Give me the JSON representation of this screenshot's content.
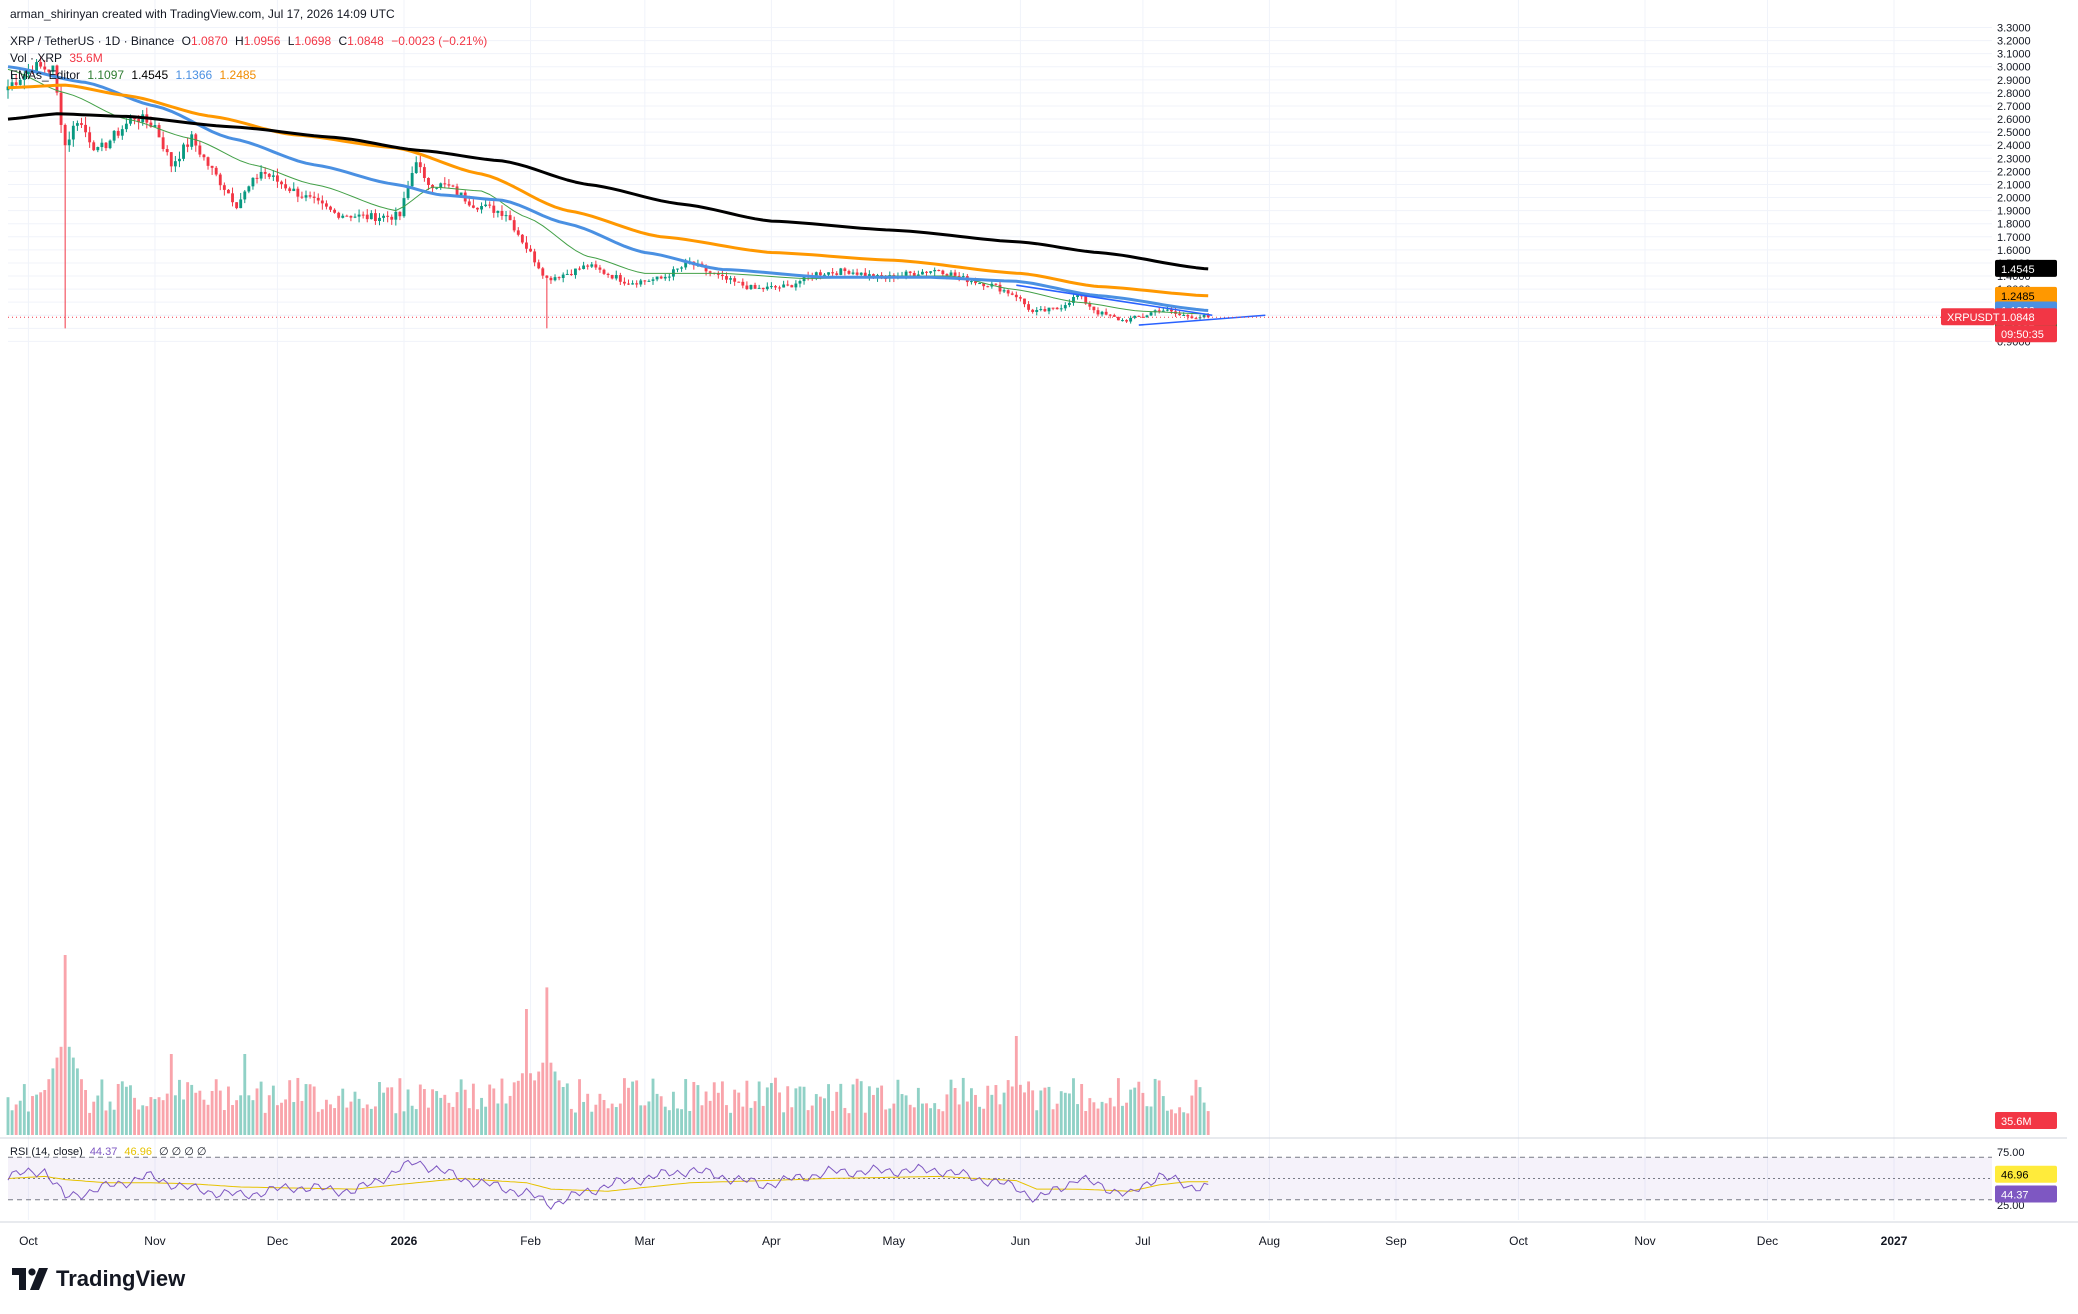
{
  "header": {
    "attribution": "arman_shirinyan created with TradingView.com, Jul 17, 2026 14:09 UTC",
    "symbol": "XRP / TetherUS · 1D · Binance",
    "o_label": "O",
    "o": "1.0870",
    "h_label": "H",
    "h": "1.0956",
    "l_label": "L",
    "l": "1.0698",
    "c_label": "C",
    "c": "1.0848",
    "change": "−0.0023 (−0.21%)",
    "vol_label": "Vol · XRP",
    "vol": "35.6M",
    "ema_label": "EMAs_Editor",
    "ema_values": [
      "1.1097",
      "1.4545",
      "1.1366",
      "1.2485"
    ]
  },
  "rsi_header": {
    "label": "RSI (14, close)",
    "value": "44.37",
    "ma": "46.96",
    "placeholders": "∅ ∅ ∅ ∅"
  },
  "price_axis_ticks": [
    "3.3000",
    "3.2000",
    "3.1000",
    "3.0000",
    "2.9000",
    "2.8000",
    "2.7000",
    "2.6000",
    "2.5000",
    "2.4000",
    "2.3000",
    "2.2000",
    "2.1000",
    "2.0000",
    "1.9000",
    "1.8000",
    "1.7000",
    "1.6000",
    "1.5000",
    "1.4000",
    "1.3000",
    "1.2000",
    "1.1000",
    "1.0000",
    "0.9000"
  ],
  "rsi_axis_ticks": [
    "75.00",
    "25.00"
  ],
  "time_axis": [
    "Oct",
    "Nov",
    "Dec",
    "2026",
    "Feb",
    "Mar",
    "Apr",
    "May",
    "Jun",
    "Jul",
    "Aug",
    "Sep",
    "Oct",
    "Nov",
    "Dec",
    "2027"
  ],
  "badges": {
    "ema200": "1.4545",
    "ema100": "1.2485",
    "ema50": "1.1366",
    "ema20": "1.1097",
    "symbol": "XRPUSDT",
    "price": "1.0848",
    "countdown": "09:50:35",
    "volume": "35.6M",
    "rsi_ma": "46.96",
    "rsi": "44.37"
  },
  "colors": {
    "up": "#089981",
    "down": "#f23645",
    "ema20": "#43a047",
    "ema50": "#4a90e2",
    "ema100": "#ff9800",
    "ema200": "#000000",
    "rsi": "#7e57c2",
    "rsi_ma": "#e6c200",
    "trendline": "#2962ff"
  },
  "logo_text": "TradingView",
  "chart_data": {
    "type": "candlestick",
    "title": "XRP / TetherUS · 1D · Binance",
    "x_range": [
      "2025-09-26",
      "2027-01-25"
    ],
    "price_range": [
      0.8,
      3.35
    ],
    "grid": true,
    "last_price": 1.0848,
    "price_path": [
      {
        "date": "2025-09-26",
        "close": 2.85
      },
      {
        "date": "2025-10-02",
        "close": 3.0
      },
      {
        "date": "2025-10-07",
        "close": 2.98
      },
      {
        "date": "2025-10-10",
        "close": 2.4
      },
      {
        "date": "2025-10-13",
        "close": 2.6
      },
      {
        "date": "2025-10-18",
        "close": 2.35
      },
      {
        "date": "2025-10-27",
        "close": 2.62
      },
      {
        "date": "2025-11-01",
        "close": 2.55
      },
      {
        "date": "2025-11-05",
        "close": 2.25
      },
      {
        "date": "2025-11-10",
        "close": 2.45
      },
      {
        "date": "2025-11-14",
        "close": 2.25
      },
      {
        "date": "2025-11-21",
        "close": 1.95
      },
      {
        "date": "2025-11-27",
        "close": 2.2
      },
      {
        "date": "2025-12-05",
        "close": 2.05
      },
      {
        "date": "2025-12-15",
        "close": 1.88
      },
      {
        "date": "2025-12-23",
        "close": 1.85
      },
      {
        "date": "2025-12-31",
        "close": 1.86
      },
      {
        "date": "2026-01-04",
        "close": 2.3
      },
      {
        "date": "2026-01-06",
        "close": 2.12
      },
      {
        "date": "2026-01-12",
        "close": 2.08
      },
      {
        "date": "2026-01-18",
        "close": 1.95
      },
      {
        "date": "2026-01-26",
        "close": 1.88
      },
      {
        "date": "2026-01-31",
        "close": 1.62
      },
      {
        "date": "2026-02-05",
        "close": 1.38
      },
      {
        "date": "2026-02-10",
        "close": 1.42
      },
      {
        "date": "2026-02-15",
        "close": 1.48
      },
      {
        "date": "2026-02-25",
        "close": 1.35
      },
      {
        "date": "2026-03-05",
        "close": 1.38
      },
      {
        "date": "2026-03-12",
        "close": 1.5
      },
      {
        "date": "2026-03-20",
        "close": 1.38
      },
      {
        "date": "2026-03-28",
        "close": 1.3
      },
      {
        "date": "2026-04-05",
        "close": 1.32
      },
      {
        "date": "2026-04-12",
        "close": 1.42
      },
      {
        "date": "2026-04-20",
        "close": 1.44
      },
      {
        "date": "2026-04-28",
        "close": 1.38
      },
      {
        "date": "2026-05-05",
        "close": 1.42
      },
      {
        "date": "2026-05-12",
        "close": 1.45
      },
      {
        "date": "2026-05-18",
        "close": 1.38
      },
      {
        "date": "2026-05-25",
        "close": 1.33
      },
      {
        "date": "2026-05-31",
        "close": 1.25
      },
      {
        "date": "2026-06-04",
        "close": 1.12
      },
      {
        "date": "2026-06-10",
        "close": 1.15
      },
      {
        "date": "2026-06-15",
        "close": 1.25
      },
      {
        "date": "2026-06-20",
        "close": 1.12
      },
      {
        "date": "2026-06-26",
        "close": 1.06
      },
      {
        "date": "2026-07-01",
        "close": 1.09
      },
      {
        "date": "2026-07-05",
        "close": 1.15
      },
      {
        "date": "2026-07-10",
        "close": 1.1
      },
      {
        "date": "2026-07-17",
        "close": 1.0848
      }
    ],
    "ema_series": [
      {
        "name": "EMA 20",
        "color": "#43a047",
        "width": 1,
        "points": [
          {
            "date": "2025-09-26",
            "value": 2.98
          },
          {
            "date": "2025-10-10",
            "value": 2.8
          },
          {
            "date": "2025-10-25",
            "value": 2.6
          },
          {
            "date": "2025-11-10",
            "value": 2.45
          },
          {
            "date": "2025-11-25",
            "value": 2.25
          },
          {
            "date": "2025-12-10",
            "value": 2.1
          },
          {
            "date": "2025-12-30",
            "value": 1.9
          },
          {
            "date": "2026-01-08",
            "value": 2.08
          },
          {
            "date": "2026-01-20",
            "value": 2.05
          },
          {
            "date": "2026-01-31",
            "value": 1.85
          },
          {
            "date": "2026-02-15",
            "value": 1.55
          },
          {
            "date": "2026-03-01",
            "value": 1.42
          },
          {
            "date": "2026-03-20",
            "value": 1.42
          },
          {
            "date": "2026-04-10",
            "value": 1.38
          },
          {
            "date": "2026-04-30",
            "value": 1.4
          },
          {
            "date": "2026-05-15",
            "value": 1.4
          },
          {
            "date": "2026-05-30",
            "value": 1.3
          },
          {
            "date": "2026-06-15",
            "value": 1.2
          },
          {
            "date": "2026-07-01",
            "value": 1.13
          },
          {
            "date": "2026-07-17",
            "value": 1.1097
          }
        ]
      },
      {
        "name": "EMA 50",
        "color": "#4a90e2",
        "width": 3,
        "points": [
          {
            "date": "2025-09-26",
            "value": 3.0
          },
          {
            "date": "2025-10-15",
            "value": 2.88
          },
          {
            "date": "2025-11-01",
            "value": 2.7
          },
          {
            "date": "2025-11-20",
            "value": 2.45
          },
          {
            "date": "2025-12-10",
            "value": 2.25
          },
          {
            "date": "2025-12-30",
            "value": 2.1
          },
          {
            "date": "2026-01-10",
            "value": 2.02
          },
          {
            "date": "2026-01-25",
            "value": 1.98
          },
          {
            "date": "2026-02-10",
            "value": 1.8
          },
          {
            "date": "2026-03-01",
            "value": 1.58
          },
          {
            "date": "2026-03-20",
            "value": 1.45
          },
          {
            "date": "2026-04-15",
            "value": 1.39
          },
          {
            "date": "2026-05-10",
            "value": 1.39
          },
          {
            "date": "2026-05-31",
            "value": 1.36
          },
          {
            "date": "2026-06-20",
            "value": 1.25
          },
          {
            "date": "2026-07-17",
            "value": 1.1366
          }
        ]
      },
      {
        "name": "EMA 100",
        "color": "#ff9800",
        "width": 3,
        "points": [
          {
            "date": "2025-09-26",
            "value": 2.84
          },
          {
            "date": "2025-10-10",
            "value": 2.86
          },
          {
            "date": "2025-10-25",
            "value": 2.78
          },
          {
            "date": "2025-11-15",
            "value": 2.62
          },
          {
            "date": "2025-12-05",
            "value": 2.48
          },
          {
            "date": "2025-12-30",
            "value": 2.38
          },
          {
            "date": "2026-01-20",
            "value": 2.18
          },
          {
            "date": "2026-02-10",
            "value": 1.9
          },
          {
            "date": "2026-03-05",
            "value": 1.7
          },
          {
            "date": "2026-04-01",
            "value": 1.58
          },
          {
            "date": "2026-05-01",
            "value": 1.52
          },
          {
            "date": "2026-06-01",
            "value": 1.42
          },
          {
            "date": "2026-06-20",
            "value": 1.32
          },
          {
            "date": "2026-07-17",
            "value": 1.2485
          }
        ]
      },
      {
        "name": "EMA 200",
        "color": "#000000",
        "width": 3,
        "points": [
          {
            "date": "2025-09-26",
            "value": 2.6
          },
          {
            "date": "2025-10-08",
            "value": 2.64
          },
          {
            "date": "2025-10-25",
            "value": 2.62
          },
          {
            "date": "2025-11-20",
            "value": 2.54
          },
          {
            "date": "2025-12-15",
            "value": 2.46
          },
          {
            "date": "2026-01-05",
            "value": 2.36
          },
          {
            "date": "2026-01-25",
            "value": 2.28
          },
          {
            "date": "2026-02-15",
            "value": 2.1
          },
          {
            "date": "2026-03-10",
            "value": 1.95
          },
          {
            "date": "2026-04-01",
            "value": 1.82
          },
          {
            "date": "2026-05-01",
            "value": 1.75
          },
          {
            "date": "2026-06-01",
            "value": 1.66
          },
          {
            "date": "2026-06-20",
            "value": 1.58
          },
          {
            "date": "2026-07-17",
            "value": 1.4545
          }
        ]
      }
    ],
    "trendlines": [
      {
        "from": {
          "date": "2026-05-31",
          "value": 1.33
        },
        "to": {
          "date": "2026-07-18",
          "value": 1.1
        }
      },
      {
        "from": {
          "date": "2026-06-30",
          "value": 1.025
        },
        "to": {
          "date": "2026-07-31",
          "value": 1.1
        }
      }
    ],
    "rsi": {
      "range": [
        25,
        75
      ],
      "levels": [
        70,
        50,
        30
      ],
      "points": [
        {
          "date": "2025-09-26",
          "rsi": 52,
          "ma": 50
        },
        {
          "date": "2025-10-05",
          "rsi": 58,
          "ma": 52
        },
        {
          "date": "2025-10-10",
          "rsi": 32,
          "ma": 49
        },
        {
          "date": "2025-10-20",
          "rsi": 42,
          "ma": 46
        },
        {
          "date": "2025-10-30",
          "rsi": 52,
          "ma": 46
        },
        {
          "date": "2025-11-10",
          "rsi": 40,
          "ma": 45
        },
        {
          "date": "2025-11-22",
          "rsi": 34,
          "ma": 42
        },
        {
          "date": "2025-12-05",
          "rsi": 42,
          "ma": 41
        },
        {
          "date": "2025-12-20",
          "rsi": 38,
          "ma": 40
        },
        {
          "date": "2026-01-04",
          "rsi": 66,
          "ma": 46
        },
        {
          "date": "2026-01-15",
          "rsi": 50,
          "ma": 50
        },
        {
          "date": "2026-01-31",
          "rsi": 36,
          "ma": 46
        },
        {
          "date": "2026-02-06",
          "rsi": 26,
          "ma": 40
        },
        {
          "date": "2026-02-20",
          "rsi": 44,
          "ma": 38
        },
        {
          "date": "2026-03-12",
          "rsi": 58,
          "ma": 46
        },
        {
          "date": "2026-03-30",
          "rsi": 44,
          "ma": 48
        },
        {
          "date": "2026-04-15",
          "rsi": 56,
          "ma": 50
        },
        {
          "date": "2026-05-12",
          "rsi": 58,
          "ma": 52
        },
        {
          "date": "2026-05-31",
          "rsi": 42,
          "ma": 48
        },
        {
          "date": "2026-06-05",
          "rsi": 30,
          "ma": 40
        },
        {
          "date": "2026-06-15",
          "rsi": 50,
          "ma": 40
        },
        {
          "date": "2026-06-28",
          "rsi": 34,
          "ma": 38
        },
        {
          "date": "2026-07-05",
          "rsi": 54,
          "ma": 44
        },
        {
          "date": "2026-07-12",
          "rsi": 42,
          "ma": 47
        },
        {
          "date": "2026-07-17",
          "rsi": 44.37,
          "ma": 46.96
        }
      ]
    },
    "volume_spikes": [
      {
        "date": "2025-10-10",
        "volume_rel": 1.0
      },
      {
        "date": "2026-01-31",
        "volume_rel": 0.7
      },
      {
        "date": "2026-02-05",
        "volume_rel": 0.82
      },
      {
        "date": "2026-05-31",
        "volume_rel": 0.55
      },
      {
        "date": "2025-11-05",
        "volume_rel": 0.45
      },
      {
        "date": "2025-11-23",
        "volume_rel": 0.45
      }
    ]
  }
}
